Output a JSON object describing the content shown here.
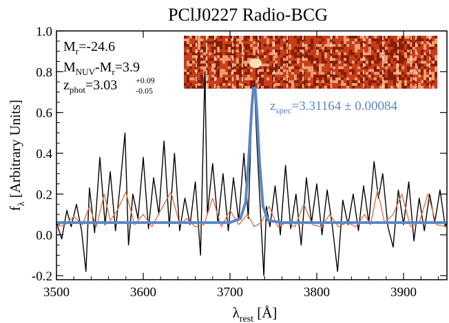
{
  "chart_data": {
    "type": "line",
    "title": "PClJ0227 Radio-BCG",
    "xlabel": {
      "base": "λ",
      "sub": "rest",
      "rest": " [Å]"
    },
    "ylabel": {
      "base": "f",
      "sub": "λ",
      "rest": " [Arbitrary Units]"
    },
    "xlim": [
      3500,
      3950
    ],
    "ylim": [
      -0.22,
      1.0
    ],
    "xticks": [
      3500,
      3600,
      3700,
      3800,
      3900
    ],
    "xtick_labels": [
      "3500",
      "3600",
      "3700",
      "3800",
      "3900"
    ],
    "yticks": [
      -0.2,
      0.0,
      0.2,
      0.4,
      0.6,
      0.8,
      1.0
    ],
    "ytick_labels": [
      "-0.2",
      "0.0",
      "0.2",
      "0.4",
      "0.6",
      "0.8",
      "1.0"
    ],
    "grid": false,
    "annotations": {
      "mr": {
        "base": "M",
        "sub": "r",
        "rest": "=-24.6"
      },
      "color": {
        "base": "M",
        "sub": "NUV",
        "mid": "-M",
        "sub2": "r",
        "rest": "=3.9"
      },
      "zphot": {
        "base": "z",
        "sub": "phot",
        "rest": "=3.03",
        "sup_err": "+0.09",
        "sub_err": "-0.05"
      },
      "zspec": {
        "base": "z",
        "sub": "spec",
        "rest": "=3.31164 ± 0.00084"
      }
    },
    "series": [
      {
        "style": "observed spectrum",
        "color": "#000000",
        "x": [
          3500,
          3506,
          3512,
          3517,
          3523,
          3529,
          3534,
          3538,
          3544,
          3550,
          3556,
          3562,
          3568,
          3574,
          3579,
          3583,
          3588,
          3594,
          3600,
          3606,
          3612,
          3618,
          3624,
          3630,
          3636,
          3642,
          3648,
          3654,
          3660,
          3666,
          3671,
          3674,
          3680,
          3686,
          3692,
          3698,
          3704,
          3710,
          3716,
          3721,
          3725,
          3728,
          3731,
          3735,
          3739,
          3742,
          3746,
          3752,
          3758,
          3764,
          3770,
          3776,
          3782,
          3788,
          3794,
          3800,
          3806,
          3812,
          3818,
          3824,
          3830,
          3836,
          3842,
          3848,
          3854,
          3860,
          3866,
          3871,
          3876,
          3882,
          3888,
          3894,
          3900,
          3906,
          3912,
          3918,
          3924,
          3930,
          3936,
          3942,
          3948,
          3950
        ],
        "y": [
          0.06,
          -0.02,
          0.12,
          0.04,
          0.15,
          0.02,
          -0.18,
          0.23,
          0.01,
          0.38,
          0.05,
          0.31,
          0.02,
          0.27,
          0.5,
          -0.05,
          0.2,
          0.08,
          0.38,
          0.03,
          0.28,
          0.1,
          0.46,
          0.04,
          0.4,
          0.02,
          0.18,
          0.05,
          0.26,
          -0.1,
          0.8,
          0.1,
          0.35,
          0.06,
          0.3,
          0.02,
          0.28,
          0.07,
          0.4,
          0.08,
          0.6,
          0.74,
          0.45,
          0.12,
          -0.2,
          0.14,
          0.04,
          0.24,
          0.0,
          0.34,
          0.03,
          0.2,
          -0.05,
          0.28,
          0.06,
          0.25,
          0.0,
          0.22,
          0.04,
          -0.18,
          0.17,
          0.05,
          0.2,
          0.02,
          0.24,
          0.06,
          0.36,
          0.18,
          0.3,
          0.04,
          -0.06,
          0.22,
          0.05,
          0.26,
          -0.03,
          0.18,
          0.02,
          0.2,
          0.06,
          0.22,
          0.04,
          0.06
        ]
      },
      {
        "style": "template spectrum",
        "color": "#d9744a",
        "x": [
          3500,
          3510,
          3520,
          3530,
          3538,
          3546,
          3555,
          3562,
          3570,
          3580,
          3590,
          3600,
          3610,
          3620,
          3632,
          3642,
          3650,
          3660,
          3670,
          3680,
          3690,
          3700,
          3710,
          3720,
          3728,
          3736,
          3745,
          3755,
          3765,
          3775,
          3785,
          3795,
          3805,
          3815,
          3825,
          3835,
          3845,
          3855,
          3862,
          3870,
          3878,
          3888,
          3898,
          3908,
          3918,
          3928,
          3938,
          3950
        ],
        "y": [
          0.04,
          0.05,
          0.09,
          0.05,
          0.14,
          0.04,
          0.2,
          0.07,
          0.12,
          0.21,
          0.05,
          0.1,
          0.04,
          0.12,
          0.21,
          0.05,
          0.08,
          0.04,
          0.05,
          0.18,
          0.04,
          0.12,
          0.05,
          0.1,
          0.04,
          0.06,
          0.14,
          0.04,
          0.06,
          0.04,
          0.15,
          0.05,
          0.04,
          0.1,
          0.04,
          0.06,
          0.04,
          0.1,
          0.05,
          0.22,
          0.06,
          0.1,
          0.2,
          0.04,
          0.06,
          0.2,
          0.05,
          0.04
        ]
      },
      {
        "style": "emission line fit",
        "color": "#5b86c4",
        "x": [
          3500,
          3700,
          3712,
          3718,
          3722,
          3725,
          3727,
          3729,
          3731,
          3734,
          3738,
          3744,
          3760,
          3950
        ],
        "y": [
          0.06,
          0.06,
          0.08,
          0.16,
          0.4,
          0.62,
          0.72,
          0.72,
          0.6,
          0.36,
          0.14,
          0.07,
          0.06,
          0.06
        ]
      }
    ],
    "colors": {
      "observed": "#000000",
      "template": "#d9744a",
      "fit": "#5b86c4",
      "image_dark": "#7a1600",
      "image_mid": "#c8401a",
      "image_light": "#f4b28a"
    }
  }
}
